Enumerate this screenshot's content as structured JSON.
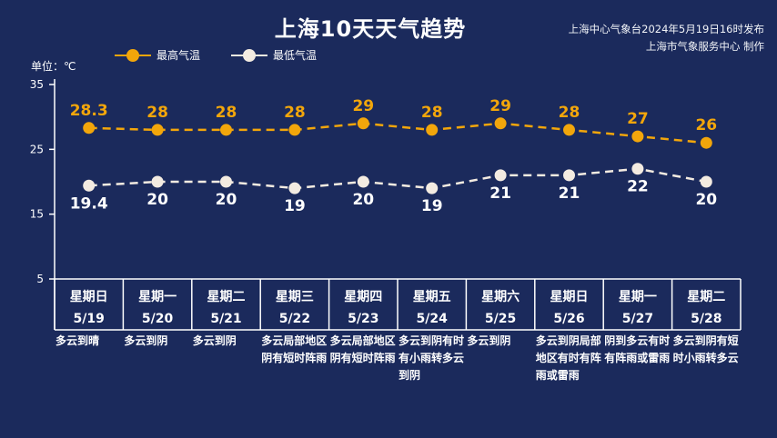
{
  "title": "上海10天天气趋势",
  "source_line1": "上海中心气象台2024年5月19日16时发布",
  "source_line2": "上海市气象服务中心 制作",
  "unit_label": "单位：℃",
  "colors": {
    "background": "#1b2a5c",
    "high": "#f2a60b",
    "low": "#f3ebe1",
    "axis": "#ffffff"
  },
  "chart_data": {
    "type": "line",
    "title": "上海10天天气趋势",
    "ylabel": "单位：℃",
    "ylim": [
      5,
      35
    ],
    "yticks": [
      5,
      15,
      25,
      35
    ],
    "grid": false,
    "legend_position": "top-left",
    "categories": [
      {
        "weekday": "星期日",
        "date": "5/19"
      },
      {
        "weekday": "星期一",
        "date": "5/20"
      },
      {
        "weekday": "星期二",
        "date": "5/21"
      },
      {
        "weekday": "星期三",
        "date": "5/22"
      },
      {
        "weekday": "星期四",
        "date": "5/23"
      },
      {
        "weekday": "星期五",
        "date": "5/24"
      },
      {
        "weekday": "星期六",
        "date": "5/25"
      },
      {
        "weekday": "星期日",
        "date": "5/26"
      },
      {
        "weekday": "星期一",
        "date": "5/27"
      },
      {
        "weekday": "星期二",
        "date": "5/28"
      }
    ],
    "series": [
      {
        "name": "最高气温",
        "values": [
          28.3,
          28,
          28,
          28,
          29,
          28,
          29,
          28,
          27,
          26
        ],
        "labels": [
          "28.3",
          "28",
          "28",
          "28",
          "29",
          "28",
          "29",
          "28",
          "27",
          "26"
        ]
      },
      {
        "name": "最低气温",
        "values": [
          19.4,
          20,
          20,
          19,
          20,
          19,
          21,
          21,
          22,
          20
        ],
        "labels": [
          "19.4",
          "20",
          "20",
          "19",
          "20",
          "19",
          "21",
          "21",
          "22",
          "20"
        ]
      }
    ]
  },
  "weather": [
    "多云到晴",
    "多云到阴",
    "多云到阴",
    "多云局部地区阴有短时阵雨",
    "多云局部地区阴有短时阵雨",
    "多云到阴有时有小雨转多云到阴",
    "多云到阴",
    "多云到阴局部地区有时有阵雨或雷雨",
    "阴到多云有时有阵雨或雷雨",
    "多云到阴有短时小雨转多云"
  ]
}
